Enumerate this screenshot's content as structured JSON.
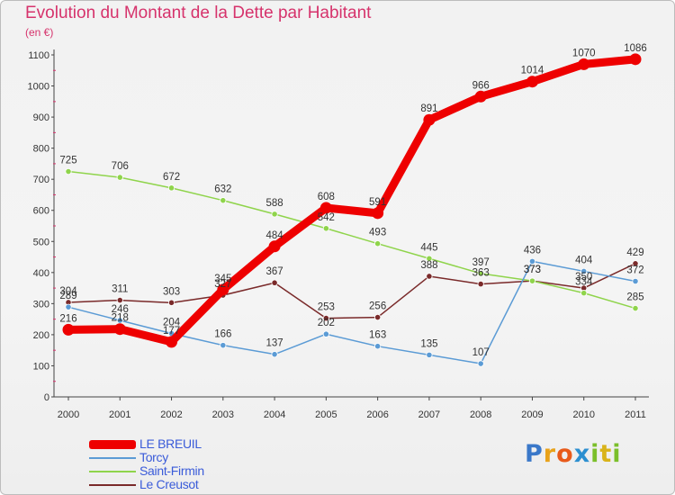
{
  "title": "Evolution du Montant de la Dette par Habitant",
  "subtitle": "(en €)",
  "logo_text": "Proxiti",
  "chart_data": {
    "type": "line",
    "title": "Evolution du Montant de la Dette par Habitant",
    "ylabel": "(en €)",
    "xlabel": "",
    "x": [
      "2000",
      "2001",
      "2002",
      "2003",
      "2004",
      "2005",
      "2006",
      "2007",
      "2008",
      "2009",
      "2010",
      "2011"
    ],
    "ylim": [
      0,
      1100
    ],
    "yticks": [
      0,
      100,
      200,
      300,
      400,
      500,
      600,
      700,
      800,
      900,
      1000,
      1100
    ],
    "grid": false,
    "legend_position": "bottom-left",
    "series": [
      {
        "name": "LE BREUIL",
        "color": "#ee0000",
        "values": [
          216,
          218,
          177,
          345,
          484,
          608,
          591,
          891,
          966,
          1014,
          1070,
          1086
        ]
      },
      {
        "name": "Torcy",
        "color": "#5b9bd5",
        "values": [
          289,
          246,
          204,
          166,
          137,
          202,
          163,
          135,
          107,
          436,
          404,
          372
        ]
      },
      {
        "name": "Saint-Firmin",
        "color": "#8fd44b",
        "values": [
          725,
          706,
          672,
          632,
          588,
          542,
          493,
          445,
          397,
          373,
          334,
          285
        ]
      },
      {
        "name": "Le Creusot",
        "color": "#7a2a2a",
        "values": [
          304,
          311,
          303,
          327,
          367,
          253,
          256,
          388,
          363,
          373,
          350,
          429
        ]
      }
    ]
  }
}
